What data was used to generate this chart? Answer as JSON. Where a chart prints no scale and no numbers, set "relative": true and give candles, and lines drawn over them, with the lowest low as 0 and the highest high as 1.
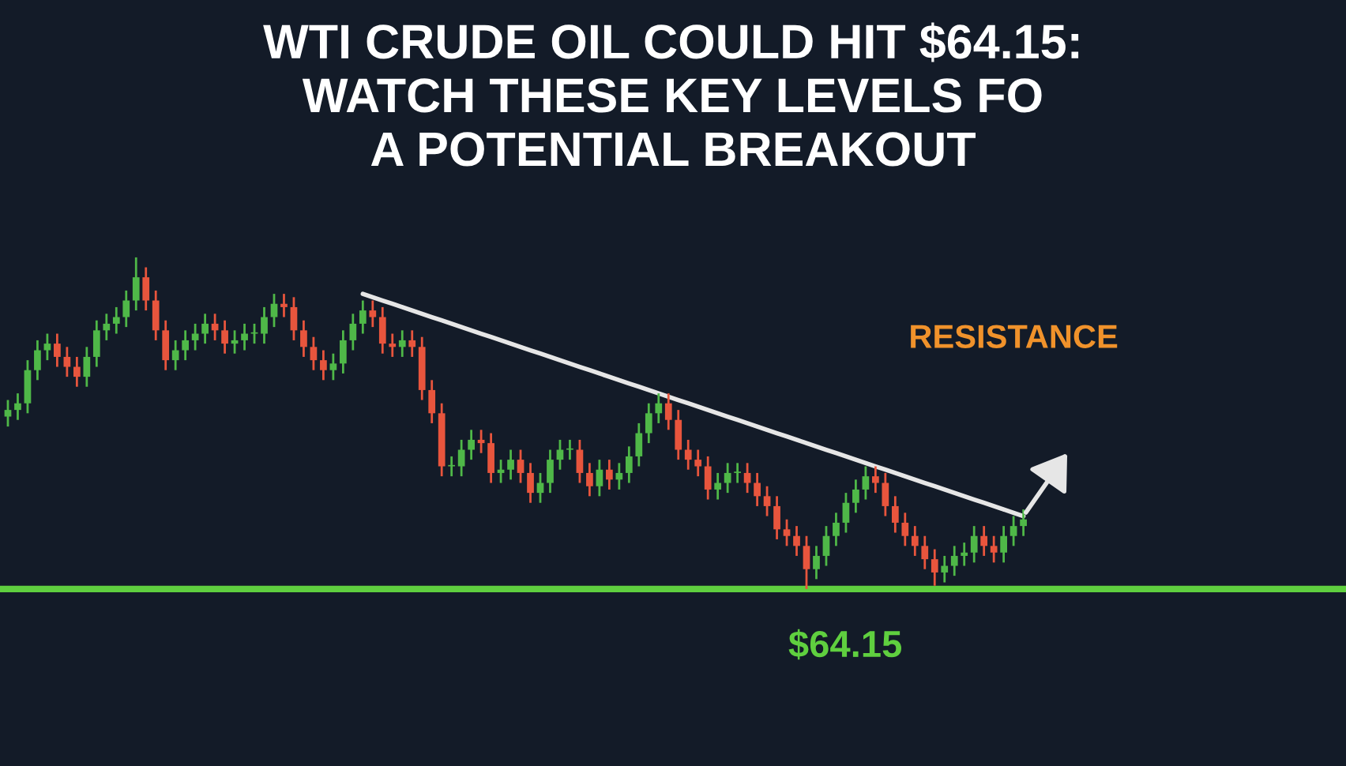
{
  "chart_data": {
    "type": "candlestick",
    "relative": true,
    "title": "WTI CRUDE OIL COULD HIT $64.15:\nWATCH THESE KEY LEVELS FO\nA POTENTIAL BREAKOUT",
    "annotations": [
      "RESISTANCE",
      "$64.15"
    ],
    "categories": [
      null,
      null,
      null,
      null,
      null,
      null,
      null,
      null,
      null,
      null,
      null,
      null,
      null,
      null,
      null,
      null,
      null,
      null,
      null,
      null,
      null,
      null,
      null,
      null,
      null,
      null,
      null,
      null,
      null,
      null,
      null,
      null,
      null,
      null,
      null,
      null,
      null,
      null,
      null,
      null,
      null,
      null,
      null,
      null,
      null,
      null,
      null,
      null,
      null,
      null,
      null,
      null,
      null,
      null,
      null,
      null,
      null,
      null,
      null,
      null,
      null,
      null,
      null,
      null,
      null,
      null,
      null,
      null,
      null,
      null,
      null,
      null,
      null,
      null,
      null,
      null,
      null,
      null,
      null,
      null,
      null,
      null,
      null,
      null,
      null,
      null,
      null,
      null,
      null,
      null,
      null,
      null,
      null,
      null,
      null,
      null,
      null,
      null,
      null,
      null,
      null,
      null,
      null,
      null
    ],
    "ohlc": [
      [
        0.52,
        0.57,
        0.49,
        0.54
      ],
      [
        0.54,
        0.59,
        0.51,
        0.56
      ],
      [
        0.56,
        0.69,
        0.53,
        0.66
      ],
      [
        0.66,
        0.75,
        0.63,
        0.72
      ],
      [
        0.72,
        0.77,
        0.69,
        0.74
      ],
      [
        0.74,
        0.77,
        0.67,
        0.7
      ],
      [
        0.7,
        0.73,
        0.64,
        0.67
      ],
      [
        0.67,
        0.7,
        0.61,
        0.64
      ],
      [
        0.64,
        0.73,
        0.61,
        0.7
      ],
      [
        0.7,
        0.81,
        0.67,
        0.78
      ],
      [
        0.78,
        0.83,
        0.75,
        0.8
      ],
      [
        0.8,
        0.85,
        0.77,
        0.82
      ],
      [
        0.82,
        0.9,
        0.79,
        0.87
      ],
      [
        0.87,
        1.0,
        0.84,
        0.94
      ],
      [
        0.94,
        0.97,
        0.84,
        0.87
      ],
      [
        0.87,
        0.9,
        0.75,
        0.78
      ],
      [
        0.78,
        0.81,
        0.66,
        0.69
      ],
      [
        0.69,
        0.75,
        0.66,
        0.72
      ],
      [
        0.72,
        0.78,
        0.69,
        0.75
      ],
      [
        0.75,
        0.8,
        0.72,
        0.77
      ],
      [
        0.77,
        0.83,
        0.74,
        0.8
      ],
      [
        0.8,
        0.83,
        0.75,
        0.78
      ],
      [
        0.78,
        0.81,
        0.71,
        0.74
      ],
      [
        0.74,
        0.78,
        0.71,
        0.75
      ],
      [
        0.75,
        0.8,
        0.72,
        0.77
      ],
      [
        0.77,
        0.8,
        0.74,
        0.77
      ],
      [
        0.77,
        0.85,
        0.74,
        0.82
      ],
      [
        0.82,
        0.89,
        0.79,
        0.86
      ],
      [
        0.86,
        0.89,
        0.82,
        0.85
      ],
      [
        0.85,
        0.88,
        0.75,
        0.78
      ],
      [
        0.78,
        0.81,
        0.7,
        0.73
      ],
      [
        0.73,
        0.76,
        0.66,
        0.69
      ],
      [
        0.69,
        0.72,
        0.63,
        0.66
      ],
      [
        0.66,
        0.71,
        0.63,
        0.68
      ],
      [
        0.68,
        0.78,
        0.65,
        0.75
      ],
      [
        0.75,
        0.83,
        0.72,
        0.8
      ],
      [
        0.8,
        0.87,
        0.77,
        0.84
      ],
      [
        0.84,
        0.87,
        0.79,
        0.82
      ],
      [
        0.82,
        0.85,
        0.71,
        0.74
      ],
      [
        0.74,
        0.77,
        0.7,
        0.73
      ],
      [
        0.73,
        0.78,
        0.7,
        0.75
      ],
      [
        0.75,
        0.78,
        0.7,
        0.73
      ],
      [
        0.73,
        0.76,
        0.57,
        0.6
      ],
      [
        0.6,
        0.63,
        0.5,
        0.53
      ],
      [
        0.53,
        0.56,
        0.34,
        0.37
      ],
      [
        0.37,
        0.4,
        0.34,
        0.37
      ],
      [
        0.37,
        0.45,
        0.34,
        0.42
      ],
      [
        0.42,
        0.48,
        0.39,
        0.45
      ],
      [
        0.45,
        0.48,
        0.41,
        0.44
      ],
      [
        0.44,
        0.47,
        0.32,
        0.35
      ],
      [
        0.35,
        0.39,
        0.32,
        0.36
      ],
      [
        0.36,
        0.42,
        0.33,
        0.39
      ],
      [
        0.39,
        0.42,
        0.32,
        0.35
      ],
      [
        0.35,
        0.38,
        0.26,
        0.29
      ],
      [
        0.29,
        0.35,
        0.26,
        0.32
      ],
      [
        0.32,
        0.42,
        0.29,
        0.39
      ],
      [
        0.39,
        0.45,
        0.36,
        0.42
      ],
      [
        0.42,
        0.45,
        0.39,
        0.42
      ],
      [
        0.42,
        0.45,
        0.32,
        0.35
      ],
      [
        0.35,
        0.38,
        0.28,
        0.31
      ],
      [
        0.31,
        0.39,
        0.28,
        0.36
      ],
      [
        0.36,
        0.39,
        0.3,
        0.33
      ],
      [
        0.33,
        0.38,
        0.3,
        0.35
      ],
      [
        0.35,
        0.43,
        0.32,
        0.4
      ],
      [
        0.4,
        0.5,
        0.37,
        0.47
      ],
      [
        0.47,
        0.56,
        0.44,
        0.53
      ],
      [
        0.53,
        0.59,
        0.5,
        0.56
      ],
      [
        0.56,
        0.59,
        0.48,
        0.51
      ],
      [
        0.51,
        0.54,
        0.39,
        0.42
      ],
      [
        0.42,
        0.45,
        0.36,
        0.39
      ],
      [
        0.39,
        0.42,
        0.34,
        0.37
      ],
      [
        0.37,
        0.4,
        0.27,
        0.3
      ],
      [
        0.3,
        0.35,
        0.27,
        0.32
      ],
      [
        0.32,
        0.38,
        0.29,
        0.35
      ],
      [
        0.35,
        0.38,
        0.32,
        0.35
      ],
      [
        0.35,
        0.38,
        0.29,
        0.32
      ],
      [
        0.32,
        0.35,
        0.25,
        0.28
      ],
      [
        0.28,
        0.31,
        0.22,
        0.25
      ],
      [
        0.25,
        0.28,
        0.15,
        0.18
      ],
      [
        0.18,
        0.21,
        0.13,
        0.16
      ],
      [
        0.16,
        0.19,
        0.1,
        0.13
      ],
      [
        0.13,
        0.16,
        0.0,
        0.06
      ],
      [
        0.06,
        0.13,
        0.03,
        0.1
      ],
      [
        0.1,
        0.19,
        0.07,
        0.16
      ],
      [
        0.16,
        0.23,
        0.13,
        0.2
      ],
      [
        0.2,
        0.29,
        0.17,
        0.26
      ],
      [
        0.26,
        0.33,
        0.23,
        0.3
      ],
      [
        0.3,
        0.37,
        0.27,
        0.34
      ],
      [
        0.34,
        0.37,
        0.29,
        0.32
      ],
      [
        0.32,
        0.35,
        0.22,
        0.25
      ],
      [
        0.25,
        0.28,
        0.17,
        0.2
      ],
      [
        0.2,
        0.23,
        0.13,
        0.16
      ],
      [
        0.16,
        0.19,
        0.1,
        0.13
      ],
      [
        0.13,
        0.16,
        0.06,
        0.09
      ],
      [
        0.09,
        0.12,
        0.01,
        0.05
      ],
      [
        0.05,
        0.1,
        0.02,
        0.07
      ],
      [
        0.07,
        0.13,
        0.04,
        0.1
      ],
      [
        0.1,
        0.14,
        0.07,
        0.11
      ],
      [
        0.11,
        0.19,
        0.08,
        0.16
      ],
      [
        0.16,
        0.19,
        0.1,
        0.13
      ],
      [
        0.13,
        0.16,
        0.08,
        0.11
      ],
      [
        0.11,
        0.19,
        0.08,
        0.16
      ],
      [
        0.16,
        0.22,
        0.13,
        0.19
      ],
      [
        0.19,
        0.24,
        0.16,
        0.21
      ]
    ],
    "series": [
      {
        "type": "line",
        "values": [
          null,
          null,
          null,
          null,
          null,
          null,
          null,
          null,
          null,
          null,
          null,
          null,
          null,
          null,
          null,
          null,
          null,
          null,
          null,
          null,
          null,
          null,
          null,
          null,
          null,
          null,
          null,
          null,
          null,
          null,
          null,
          null,
          null,
          null,
          null,
          null,
          0.89,
          0.88,
          0.87,
          0.86,
          0.85,
          0.84,
          0.83,
          0.82,
          0.81,
          0.8,
          0.79,
          0.78,
          0.77,
          0.76,
          0.75,
          0.74,
          0.73,
          0.72,
          0.71,
          0.7,
          0.69,
          0.68,
          0.67,
          0.66,
          0.65,
          0.64,
          0.63,
          0.62,
          0.61,
          0.6,
          0.59,
          0.58,
          0.57,
          0.56,
          0.55,
          0.54,
          0.53,
          0.52,
          0.51,
          0.5,
          0.49,
          0.48,
          0.47,
          0.46,
          0.45,
          0.44,
          0.43,
          0.42,
          0.41,
          0.4,
          0.39,
          0.38,
          0.37,
          0.36,
          0.35,
          0.34,
          0.33,
          0.32,
          0.31,
          0.3,
          0.29,
          0.28,
          0.27,
          0.26,
          0.25,
          0.24,
          0.23,
          0.22
        ],
        "color": "#e6e6e6"
      }
    ],
    "ref_lines": [
      {
        "axis": "y",
        "value": 0,
        "color": "#5fcf3f"
      }
    ]
  }
}
